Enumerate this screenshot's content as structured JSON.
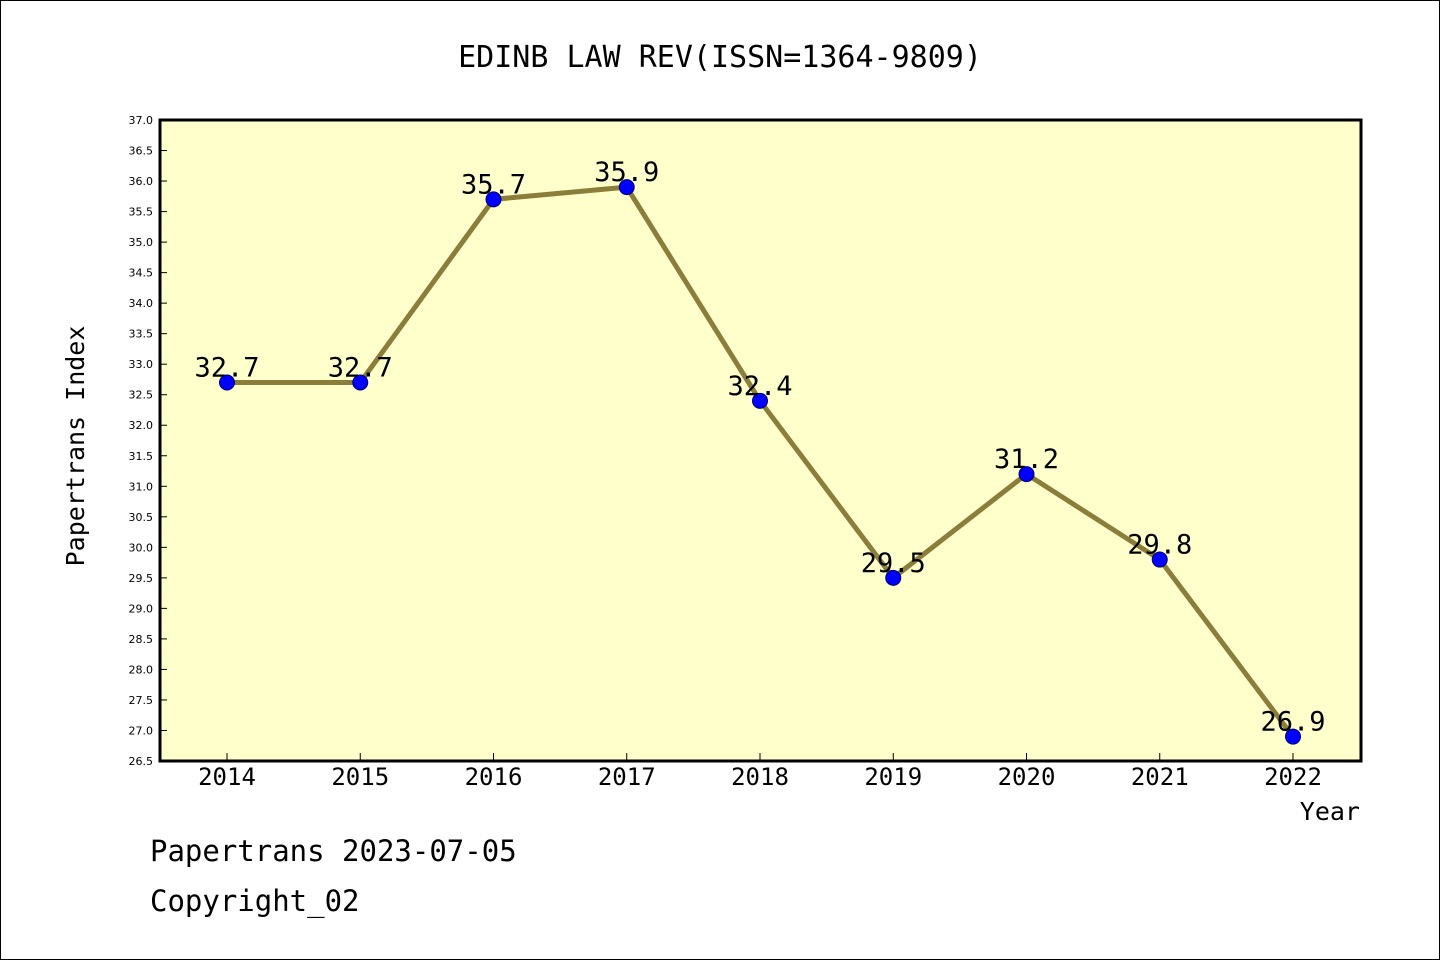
{
  "chart_data": {
    "type": "line",
    "title": "EDINB LAW REV(ISSN=1364-9809)",
    "xlabel": "Year",
    "ylabel": "Papertrans Index",
    "categories": [
      "2014",
      "2015",
      "2016",
      "2017",
      "2018",
      "2019",
      "2020",
      "2021",
      "2022"
    ],
    "series": [
      {
        "values": [
          32.7,
          32.7,
          35.7,
          35.9,
          32.4,
          29.5,
          31.2,
          29.8,
          26.9
        ]
      }
    ],
    "data_labels": [
      "32.7",
      "32.7",
      "35.7",
      "35.9",
      "32.4",
      "29.5",
      "31.2",
      "29.8",
      "26.9"
    ],
    "ylim": [
      26.5,
      37.0
    ],
    "ytick_step": 0.5,
    "grid": false,
    "legend": "none",
    "colors": {
      "plot_background": "#ffffcc",
      "line": "#8b7d3a",
      "marker": "#0000ff"
    }
  },
  "footer": {
    "date_line": "Papertrans 2023-07-05",
    "copyright_line": "Copyright_02"
  }
}
